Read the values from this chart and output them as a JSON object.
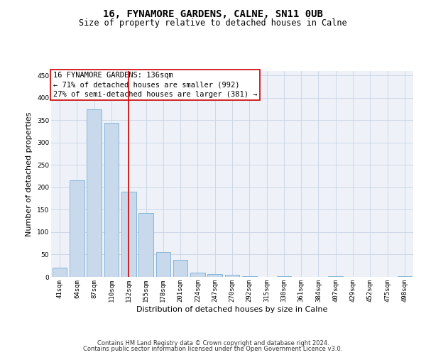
{
  "title1": "16, FYNAMORE GARDENS, CALNE, SN11 0UB",
  "title2": "Size of property relative to detached houses in Calne",
  "xlabel": "Distribution of detached houses by size in Calne",
  "ylabel": "Number of detached properties",
  "bar_labels": [
    "41sqm",
    "64sqm",
    "87sqm",
    "110sqm",
    "132sqm",
    "155sqm",
    "178sqm",
    "201sqm",
    "224sqm",
    "247sqm",
    "270sqm",
    "292sqm",
    "315sqm",
    "338sqm",
    "361sqm",
    "384sqm",
    "407sqm",
    "429sqm",
    "452sqm",
    "475sqm",
    "498sqm"
  ],
  "bar_values": [
    20,
    215,
    375,
    345,
    190,
    142,
    55,
    38,
    10,
    7,
    4,
    2,
    0,
    1,
    0,
    0,
    2,
    0,
    0,
    0,
    2
  ],
  "bar_color": "#c9d9ec",
  "bar_edge_color": "#7aadd4",
  "vline_index": 4,
  "vline_color": "#cc0000",
  "annotation_line1": "16 FYNAMORE GARDENS: 136sqm",
  "annotation_line2": "← 71% of detached houses are smaller (992)",
  "annotation_line3": "27% of semi-detached houses are larger (381) →",
  "annotation_box_color": "#ffffff",
  "annotation_box_edge_color": "#cc0000",
  "ylim": [
    0,
    460
  ],
  "yticks": [
    0,
    50,
    100,
    150,
    200,
    250,
    300,
    350,
    400,
    450
  ],
  "grid_color": "#c8d4e3",
  "background_color": "#eef2f8",
  "footer1": "Contains HM Land Registry data © Crown copyright and database right 2024.",
  "footer2": "Contains public sector information licensed under the Open Government Licence v3.0.",
  "title_fontsize": 10,
  "subtitle_fontsize": 8.5,
  "axis_label_fontsize": 8,
  "tick_fontsize": 6.5,
  "annotation_fontsize": 7.5,
  "footer_fontsize": 6
}
